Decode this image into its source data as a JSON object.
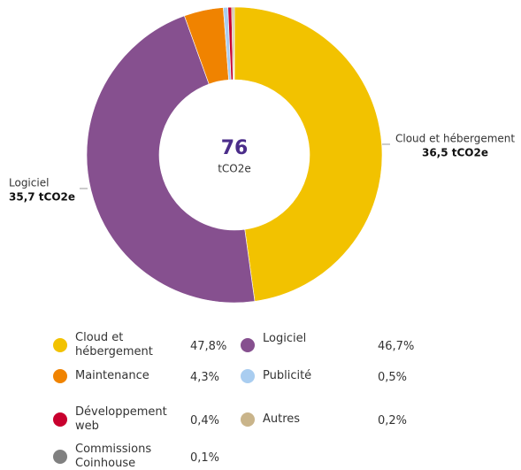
{
  "chart_data": {
    "type": "donut",
    "categories": [
      "Cloud et hébergement",
      "Logiciel",
      "Maintenance",
      "Publicité",
      "Développement web",
      "Autres",
      "Commissions Coinhouse"
    ],
    "values": [
      47.8,
      46.7,
      4.3,
      0.5,
      0.4,
      0.2,
      0.1
    ],
    "value_labels": [
      "47,8%",
      "46,7%",
      "4,3%",
      "0,5%",
      "0,4%",
      "0,2%",
      "0,1%"
    ],
    "colors": [
      "#f2c200",
      "#86508f",
      "#f08300",
      "#a9cdf0",
      "#c8002e",
      "#c9b48a",
      "#808080"
    ],
    "center_value": 76,
    "center_unit": "tCO2e",
    "callouts": [
      {
        "label": "Cloud et hébergement",
        "value": 36.5,
        "value_label": "36,5 tCO2e"
      },
      {
        "label": "Logiciel",
        "value": 35.7,
        "value_label": "35,7 tCO2e"
      }
    ]
  }
}
